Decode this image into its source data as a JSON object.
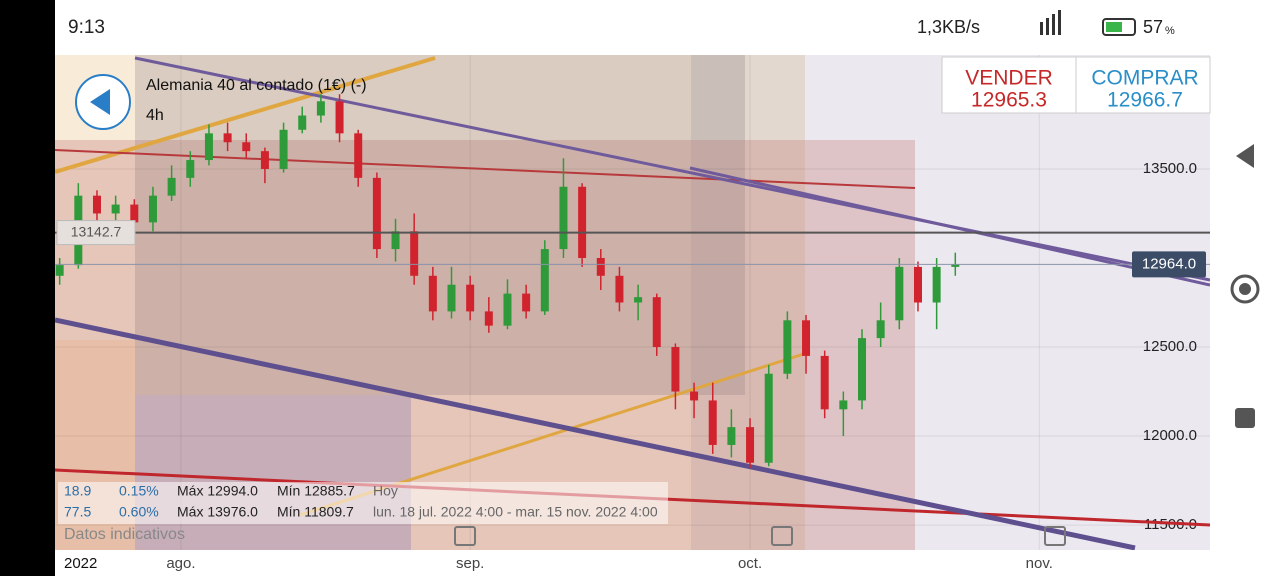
{
  "status_bar": {
    "time": "9:13",
    "network": "1,3KB/s",
    "battery": "57",
    "battery_unit": "%"
  },
  "instrument": {
    "name": "Alemania 40 al contado (1€) (-)",
    "timeframe": "4h"
  },
  "sell": {
    "label": "VENDER",
    "price": "12965.3"
  },
  "buy": {
    "label": "COMPRAR",
    "price": "12966.7"
  },
  "chart_data": {
    "type": "candlestick",
    "up_color": "#2e9a3a",
    "down_color": "#d0232e",
    "x": [
      -13,
      -11,
      -9,
      -7,
      -5,
      -3,
      -1,
      1,
      3,
      5,
      7,
      9,
      11,
      13,
      15,
      17,
      19,
      21,
      23,
      25,
      27,
      29,
      31,
      33,
      35,
      37,
      39,
      41,
      43,
      45,
      47,
      49,
      51,
      53,
      55,
      57,
      59,
      61,
      63,
      65,
      67,
      69,
      71,
      73,
      75,
      77,
      79,
      81,
      83
    ],
    "open": [
      12900,
      12960,
      13350,
      13250,
      13300,
      13200,
      13350,
      13450,
      13550,
      13700,
      13650,
      13600,
      13500,
      13720,
      13800,
      13880,
      13700,
      13450,
      13050,
      13150,
      12900,
      12700,
      12850,
      12700,
      12620,
      12800,
      12700,
      13050,
      13400,
      13000,
      12900,
      12750,
      12780,
      12500,
      12250,
      12200,
      11950,
      12050,
      11850,
      12350,
      12650,
      12450,
      12150,
      12200,
      12550,
      12650,
      12950,
      12750,
      12950
    ],
    "high": [
      13000,
      13420,
      13380,
      13350,
      13330,
      13400,
      13520,
      13600,
      13750,
      13760,
      13700,
      13620,
      13760,
      13850,
      13920,
      13920,
      13720,
      13480,
      13220,
      13250,
      12950,
      12950,
      12900,
      12780,
      12880,
      12850,
      13100,
      13560,
      13420,
      13050,
      12950,
      12850,
      12800,
      12520,
      12300,
      12300,
      12150,
      12100,
      12400,
      12700,
      12680,
      12480,
      12250,
      12600,
      12750,
      13000,
      12980,
      13000,
      13030
    ],
    "low": [
      12850,
      12940,
      13200,
      13180,
      13150,
      13150,
      13320,
      13400,
      13520,
      13600,
      13560,
      13420,
      13480,
      13700,
      13760,
      13650,
      13400,
      13000,
      12980,
      12850,
      12650,
      12660,
      12650,
      12580,
      12600,
      12660,
      12680,
      13000,
      12950,
      12820,
      12700,
      12650,
      12450,
      12150,
      12100,
      11900,
      11880,
      11820,
      11830,
      12320,
      12350,
      12100,
      12000,
      12150,
      12500,
      12600,
      12700,
      12600,
      12900
    ],
    "close": [
      12960,
      13350,
      13250,
      13300,
      13200,
      13350,
      13450,
      13550,
      13700,
      13650,
      13600,
      13500,
      13720,
      13800,
      13880,
      13700,
      13450,
      13050,
      13150,
      12900,
      12700,
      12850,
      12700,
      12620,
      12800,
      12700,
      13050,
      13400,
      13000,
      12900,
      12750,
      12780,
      12500,
      12250,
      12200,
      11950,
      12050,
      11850,
      12350,
      12650,
      12450,
      12150,
      12200,
      12550,
      12650,
      12950,
      12750,
      12950,
      12964
    ],
    "xlim": [
      -13.5,
      110.3
    ],
    "ylim": [
      11360,
      14140
    ],
    "yticks": [
      {
        "value": 13500,
        "label": "13500.0"
      },
      {
        "value": 12500,
        "label": "12500.0"
      },
      {
        "value": 12000,
        "label": "12000.0"
      },
      {
        "value": 11500,
        "label": "11500.0"
      }
    ],
    "xticks": [
      {
        "value": 0,
        "label": "ago."
      },
      {
        "value": 31,
        "label": "sep."
      },
      {
        "value": 61,
        "label": "oct."
      },
      {
        "value": 92,
        "label": "nov."
      }
    ],
    "markers": [
      {
        "value": 13142.7,
        "label": "13142.7"
      },
      {
        "value": 12964,
        "label": "12964.0"
      }
    ],
    "year": "2022"
  },
  "stats": {
    "rows": [
      [
        "18.9",
        "0.15%",
        "Máx 12994.0",
        "Mín 12885.7",
        "Hoy"
      ],
      [
        "77.5",
        "0.60%",
        "Máx 13976.0",
        "Mín 11809.7",
        "lun. 18 jul. 2022 4:00 - mar. 15 nov. 2022 4:00"
      ]
    ],
    "note": "Datos indicativos"
  }
}
